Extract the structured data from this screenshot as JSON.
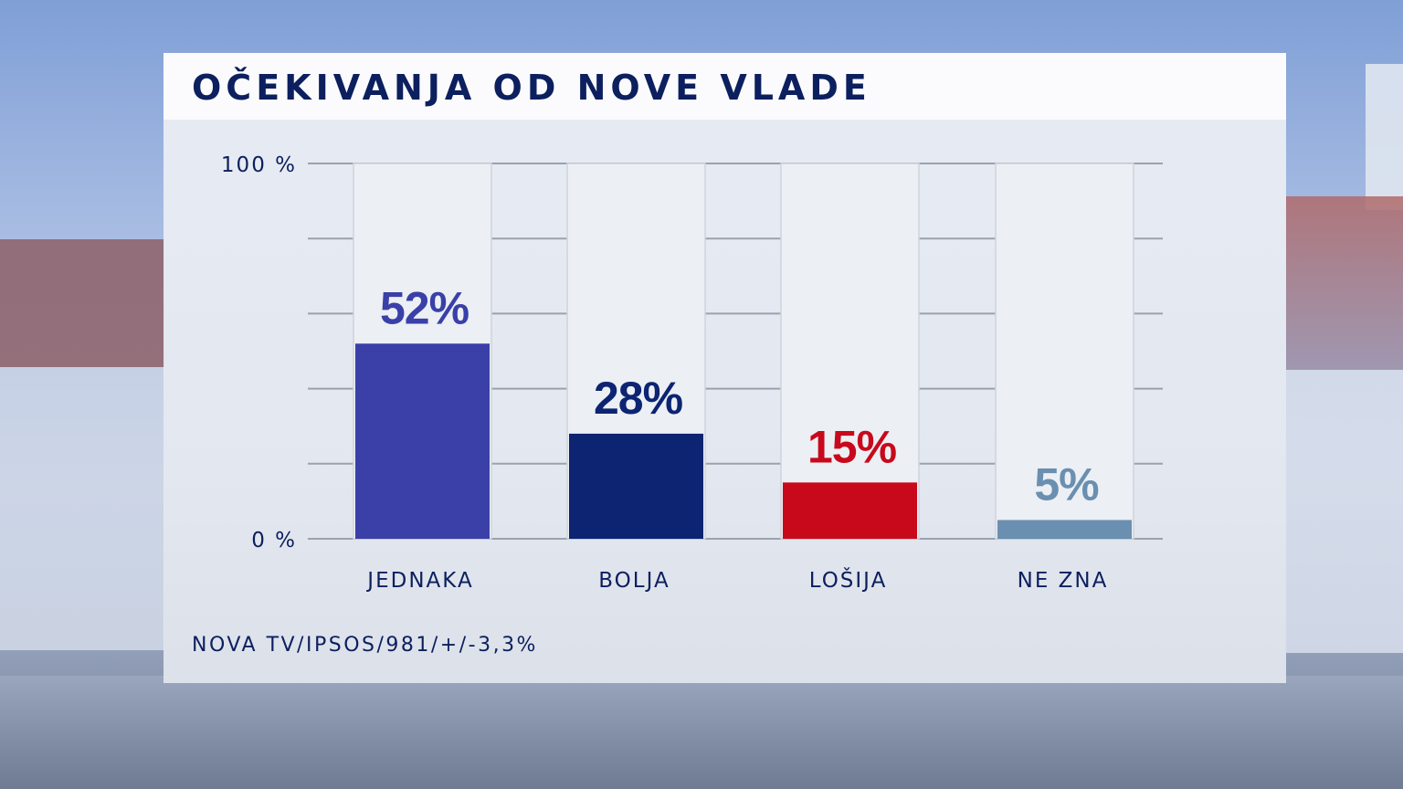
{
  "title": "OČEKIVANJA OD NOVE VLADE",
  "source": "NOVA TV/IPSOS/981/+/-3,3%",
  "chart_data": {
    "type": "bar",
    "title": "OČEKIVANJA OD NOVE VLADE",
    "categories": [
      "JEDNAKA",
      "BOLJA",
      "LOŠIJA",
      "NE ZNA"
    ],
    "values": [
      52,
      28,
      15,
      5
    ],
    "value_labels": [
      "52%",
      "28%",
      "15%",
      "5%"
    ],
    "colors": [
      "#3a40a8",
      "#0c2472",
      "#c8091b",
      "#6a8fb0"
    ],
    "ylim": [
      0,
      100
    ],
    "ytick_labels": [
      "0 %",
      "100 %"
    ],
    "grid": true,
    "xlabel": "",
    "ylabel": ""
  }
}
